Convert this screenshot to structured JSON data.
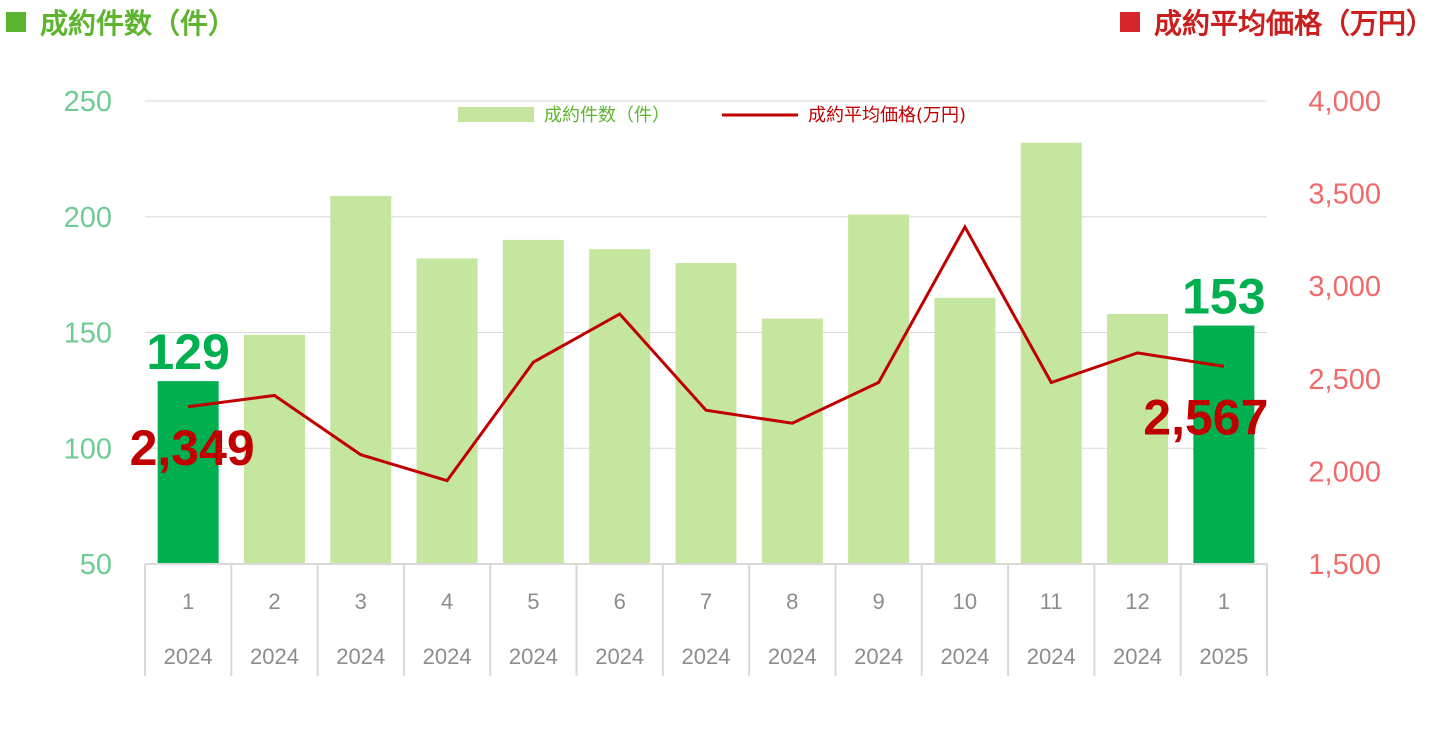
{
  "header": {
    "left_title": "成約件数（件）",
    "right_title": "成約平均価格（万円）"
  },
  "legend": {
    "bar_label": "成約件数（件）",
    "line_label": "成約平均価格(万円)"
  },
  "colors": {
    "bar": "#c5e69e",
    "bar_highlight": "#00b050",
    "line": "#c00000",
    "left_axis": "#6fcb94",
    "right_axis": "#f16a6a",
    "grid": "#d9d9d9"
  },
  "chart_data": {
    "type": "bar",
    "title": "",
    "categories": [
      "1",
      "2",
      "3",
      "4",
      "5",
      "6",
      "7",
      "8",
      "9",
      "10",
      "11",
      "12",
      "1"
    ],
    "category_years": [
      "2024",
      "2024",
      "2024",
      "2024",
      "2024",
      "2024",
      "2024",
      "2024",
      "2024",
      "2024",
      "2024",
      "2024",
      "2025"
    ],
    "series": [
      {
        "name": "成約件数（件）",
        "type": "bar",
        "axis": "left",
        "values": [
          129,
          149,
          209,
          182,
          190,
          186,
          180,
          156,
          201,
          165,
          232,
          158,
          153
        ],
        "highlight_indices": [
          0,
          12
        ]
      },
      {
        "name": "成約平均価格(万円)",
        "type": "line",
        "axis": "right",
        "values": [
          2349,
          2410,
          2090,
          1950,
          2590,
          2850,
          2330,
          2260,
          2480,
          3320,
          2480,
          2640,
          2567
        ]
      }
    ],
    "left_axis": {
      "ylim": [
        50,
        250
      ],
      "ticks": [
        "50",
        "100",
        "150",
        "200",
        "250"
      ]
    },
    "right_axis": {
      "ylim": [
        1500,
        4000
      ],
      "ticks": [
        "1,500",
        "2,000",
        "2,500",
        "3,000",
        "3,500",
        "4,000"
      ]
    },
    "data_labels": [
      {
        "series": 0,
        "index": 0,
        "text": "129"
      },
      {
        "series": 0,
        "index": 12,
        "text": "153"
      },
      {
        "series": 1,
        "index": 0,
        "text": "2,349"
      },
      {
        "series": 1,
        "index": 12,
        "text": "2,567"
      }
    ],
    "grid": true,
    "legend_position": "top"
  }
}
